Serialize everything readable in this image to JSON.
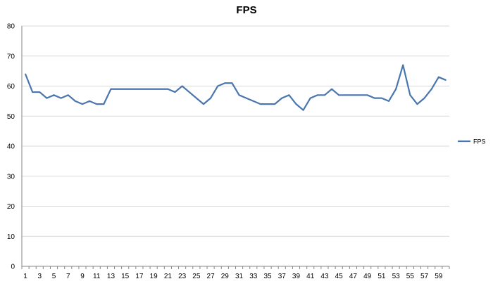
{
  "chart_data": {
    "type": "line",
    "title": "FPS",
    "xlabel": "",
    "ylabel": "",
    "ylim": [
      0,
      80
    ],
    "yticks": [
      0,
      10,
      20,
      30,
      40,
      50,
      60,
      70,
      80
    ],
    "x": [
      1,
      2,
      3,
      4,
      5,
      6,
      7,
      8,
      9,
      10,
      11,
      12,
      13,
      14,
      15,
      16,
      17,
      18,
      19,
      20,
      21,
      22,
      23,
      24,
      25,
      26,
      27,
      28,
      29,
      30,
      31,
      32,
      33,
      34,
      35,
      36,
      37,
      38,
      39,
      40,
      41,
      42,
      43,
      44,
      45,
      46,
      47,
      48,
      49,
      50,
      51,
      52,
      53,
      54,
      55,
      56,
      57,
      58,
      59,
      60
    ],
    "xtick_labels": [
      "1",
      "3",
      "5",
      "7",
      "9",
      "11",
      "13",
      "15",
      "17",
      "19",
      "21",
      "23",
      "25",
      "27",
      "29",
      "31",
      "33",
      "35",
      "37",
      "39",
      "41",
      "43",
      "45",
      "47",
      "49",
      "51",
      "53",
      "55",
      "57",
      "59"
    ],
    "series": [
      {
        "name": "FPS",
        "color": "#4a76ae",
        "values": [
          64,
          58,
          58,
          56,
          57,
          56,
          57,
          55,
          54,
          55,
          54,
          54,
          59,
          59,
          59,
          59,
          59,
          59,
          59,
          59,
          59,
          58,
          60,
          58,
          56,
          54,
          56,
          60,
          61,
          61,
          57,
          56,
          55,
          54,
          54,
          54,
          56,
          57,
          54,
          52,
          56,
          57,
          57,
          59,
          57,
          57,
          57,
          57,
          57,
          56,
          56,
          55,
          59,
          67,
          57,
          54,
          56,
          59,
          63,
          62
        ]
      }
    ],
    "grid": true,
    "legend": "right"
  },
  "colors": {
    "gridline": "#d9d9d9",
    "axis": "#868686",
    "text": "#000000"
  }
}
